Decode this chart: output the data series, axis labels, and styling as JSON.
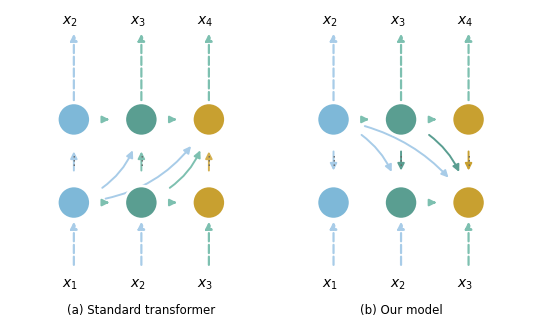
{
  "blue_color": "#7eb8d8",
  "teal_color": "#5a9e91",
  "gold_color": "#c8a030",
  "blue_light": "#a8cce8",
  "teal_light": "#7dc0b0",
  "gold_light": "#d4b050",
  "caption_a": "(a) Standard transformer",
  "caption_b": "(b) Our model"
}
